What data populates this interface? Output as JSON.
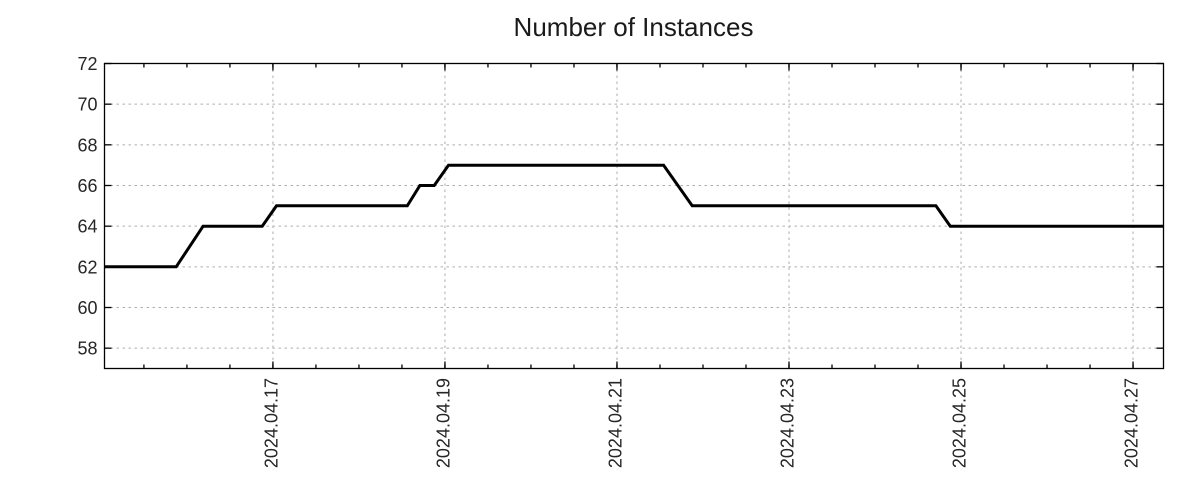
{
  "chart_data": {
    "type": "line",
    "title": "Number of Instances",
    "legend": "none",
    "x_axis": {
      "range": [
        "2024-04-15T01:00",
        "2024-04-27T08:30"
      ],
      "major_ticks": [
        {
          "at": "2024-04-17T00:00",
          "label": "2024.04.17"
        },
        {
          "at": "2024-04-19T00:00",
          "label": "2024.04.19"
        },
        {
          "at": "2024-04-21T00:00",
          "label": "2024.04.21"
        },
        {
          "at": "2024-04-23T00:00",
          "label": "2024.04.23"
        },
        {
          "at": "2024-04-25T00:00",
          "label": "2024.04.25"
        },
        {
          "at": "2024-04-27T00:00",
          "label": "2024.04.27"
        }
      ],
      "minor_tick_interval_hours": 12,
      "tick_label_rotation_deg": -90
    },
    "y_axis": {
      "range": [
        57,
        72
      ],
      "major_ticks": [
        {
          "at": 58,
          "label": "58"
        },
        {
          "at": 60,
          "label": "60"
        },
        {
          "at": 62,
          "label": "62"
        },
        {
          "at": 64,
          "label": "64"
        },
        {
          "at": 66,
          "label": "66"
        },
        {
          "at": 68,
          "label": "68"
        },
        {
          "at": 70,
          "label": "70"
        },
        {
          "at": 72,
          "label": "72"
        }
      ]
    },
    "grid": {
      "show": true,
      "style": "dotted",
      "color": "#adadad"
    },
    "series": [
      {
        "name": "Number of Instances",
        "color": "#000000",
        "line_width": 3,
        "points": [
          [
            "2024-04-15T01:00",
            62
          ],
          [
            "2024-04-15T21:00",
            62
          ],
          [
            "2024-04-16T04:30",
            64
          ],
          [
            "2024-04-16T21:00",
            64
          ],
          [
            "2024-04-17T01:00",
            65
          ],
          [
            "2024-04-18T13:30",
            65
          ],
          [
            "2024-04-18T17:00",
            66
          ],
          [
            "2024-04-18T21:00",
            66
          ],
          [
            "2024-04-19T01:00",
            67
          ],
          [
            "2024-04-21T13:00",
            67
          ],
          [
            "2024-04-21T21:00",
            65
          ],
          [
            "2024-04-24T17:00",
            65
          ],
          [
            "2024-04-24T21:00",
            64
          ],
          [
            "2024-04-27T08:30",
            64
          ]
        ]
      }
    ],
    "colors": {
      "axis": "#000000",
      "tick_label": "#262626",
      "title": "#1a1a1a",
      "background": "#ffffff"
    }
  }
}
